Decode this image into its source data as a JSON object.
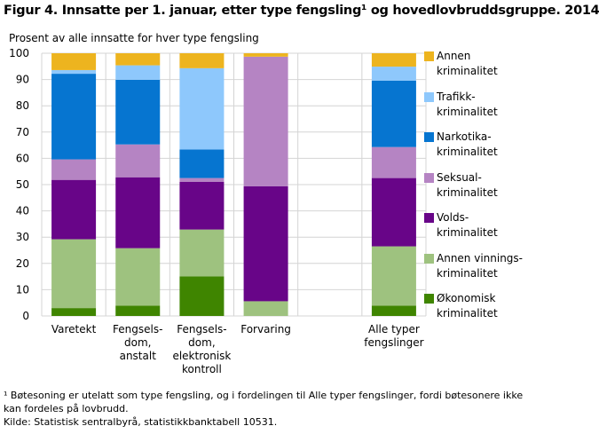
{
  "chart_data": {
    "type": "bar",
    "stacked": true,
    "title": "Figur 4. Innsatte per 1. januar, etter type fengsling¹ og hovedlovbruddsgruppe. 2014",
    "ylabel": "Prosent av alle innsatte for hver type fengsling",
    "ylim": [
      0,
      100
    ],
    "yticks": [
      0,
      10,
      20,
      30,
      40,
      50,
      60,
      70,
      80,
      90,
      100
    ],
    "grid": true,
    "legend_position": "right",
    "categories": [
      "Varetekt",
      "Fengsels-\ndom,\nanstalt",
      "Fengsels-\ndom,\nelektronisk\nkontroll",
      "Forvaring",
      "",
      "Alle typer\nfengslinger"
    ],
    "series": [
      {
        "name": "Økonomisk kriminalitet",
        "color": "#3f8500",
        "values": [
          3.0,
          3.9,
          15.1,
          0,
          null,
          3.9
        ]
      },
      {
        "name": "Annen vinnings-kriminalitet",
        "color": "#9ec27f",
        "values": [
          26.2,
          21.9,
          17.8,
          5.6,
          null,
          22.6
        ]
      },
      {
        "name": "Volds-kriminalitet",
        "color": "#680588",
        "values": [
          22.6,
          27.0,
          18.2,
          43.8,
          null,
          26.0
        ]
      },
      {
        "name": "Seksual-kriminalitet",
        "color": "#b584c3",
        "values": [
          7.8,
          12.5,
          1.4,
          49.3,
          null,
          11.8
        ]
      },
      {
        "name": "Narkotika-kriminalitet",
        "color": "#0675d0",
        "values": [
          32.6,
          24.6,
          10.9,
          0,
          null,
          25.3
        ]
      },
      {
        "name": "Trafikk-kriminalitet",
        "color": "#8ec8fc",
        "values": [
          1.4,
          5.5,
          30.9,
          0,
          null,
          5.3
        ]
      },
      {
        "name": "Annen kriminalitet",
        "color": "#edb41f",
        "values": [
          6.4,
          4.6,
          5.7,
          1.3,
          null,
          5.1
        ]
      }
    ],
    "legend": [
      [
        "Annen",
        "kriminalitet"
      ],
      [
        "Trafikk-",
        "kriminalitet"
      ],
      [
        "Narkotika-",
        "kriminalitet"
      ],
      [
        "Seksual-",
        "kriminalitet"
      ],
      [
        "Volds-",
        "kriminalitet"
      ],
      [
        "Annen vinnings-",
        "kriminalitet"
      ],
      [
        "Økonomisk",
        "kriminalitet"
      ]
    ]
  },
  "notes": {
    "footnote_1": "¹ Bøtesoning er utelatt som type fengsling, og i fordelingen til Alle typer fengslinger, fordi bøtesonere ikke",
    "footnote_2": "kan fordeles på lovbrudd.",
    "source": "Kilde: Statistisk sentralbyrå, statistikkbanktabell 10531."
  }
}
